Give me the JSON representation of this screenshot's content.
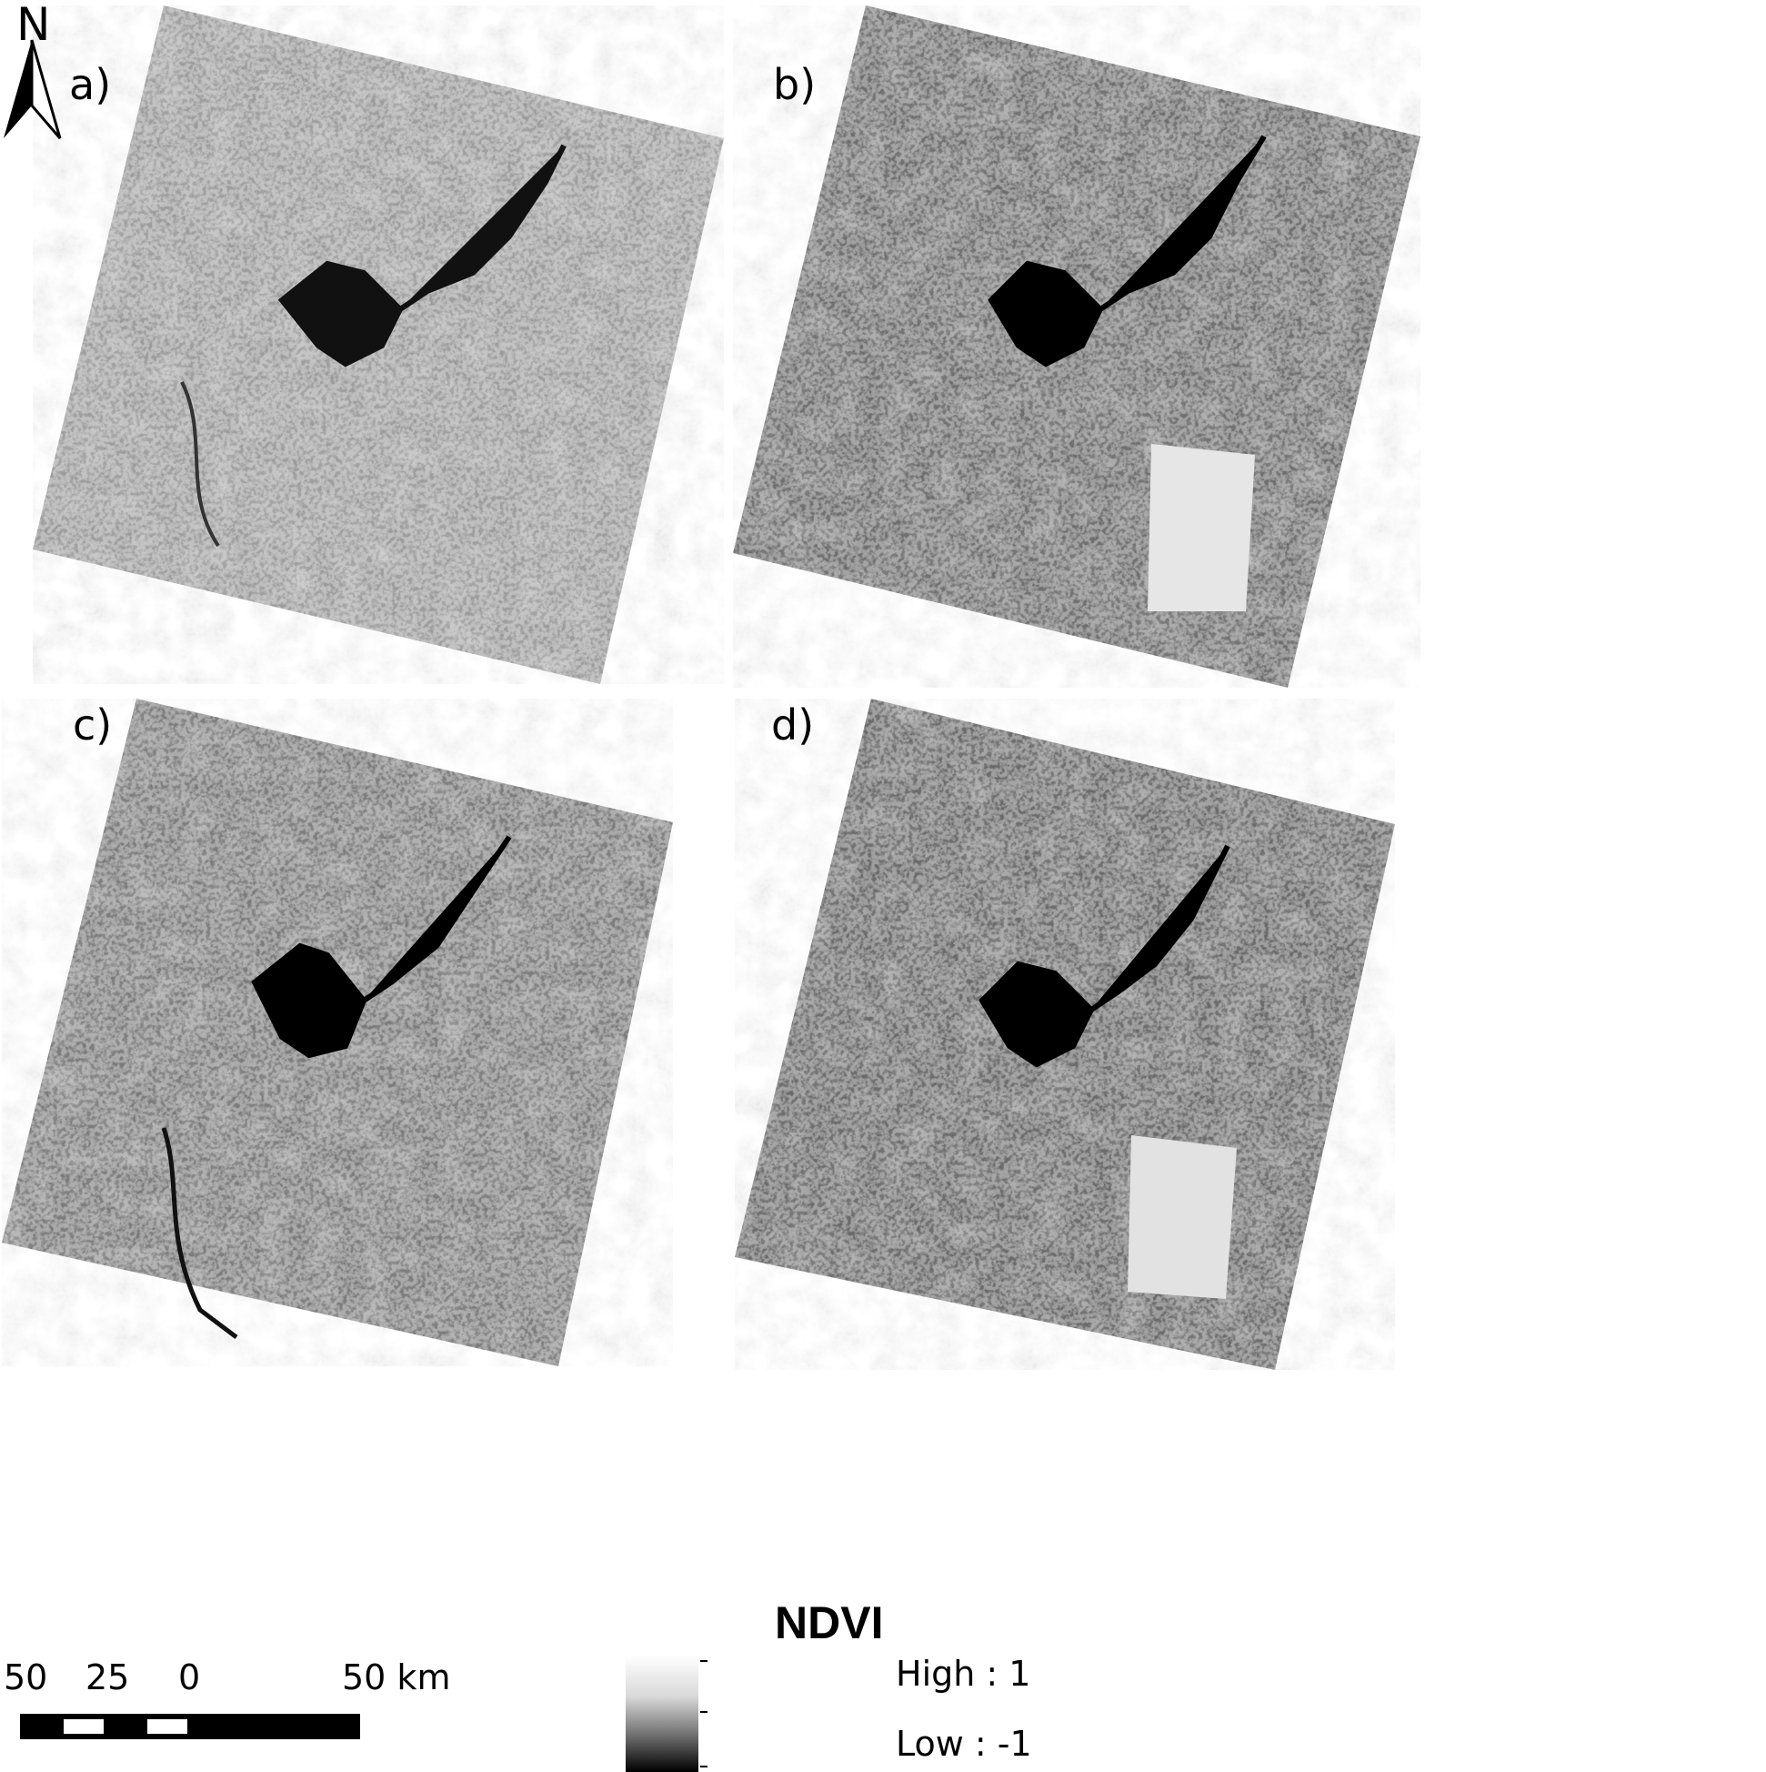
{
  "north_arrow": {
    "label": "N",
    "icon": "north-arrow-icon"
  },
  "panels": [
    {
      "id": "a",
      "label": "a)",
      "tone": "light",
      "reservoir": "dark"
    },
    {
      "id": "b",
      "label": "b)",
      "tone": "medium",
      "reservoir": "dark"
    },
    {
      "id": "c",
      "label": "c)",
      "tone": "light",
      "reservoir": "dark"
    },
    {
      "id": "d",
      "label": "d)",
      "tone": "medium",
      "reservoir": "dark"
    }
  ],
  "legend": {
    "title": "NDVI",
    "high_label": "High : 1",
    "low_label": "Low : -1",
    "gradient_top": "#ffffff",
    "gradient_bottom": "#000000"
  },
  "scale_bar": {
    "labels": [
      "50",
      "25",
      "0",
      "50 km"
    ]
  }
}
